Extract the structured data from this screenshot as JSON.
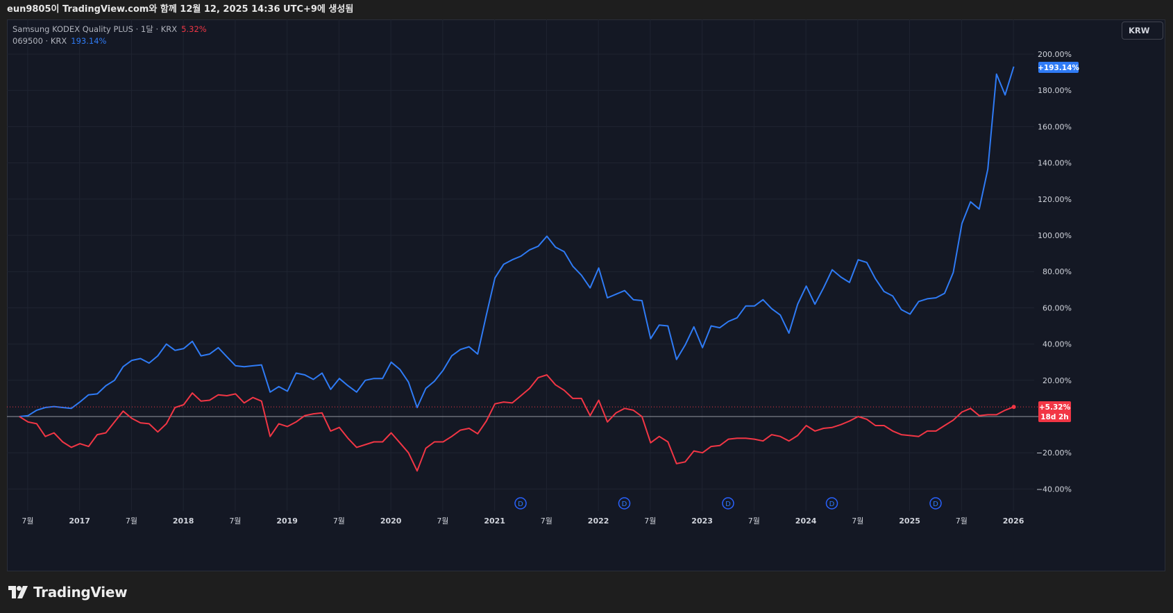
{
  "header": {
    "caption": "eun9805이 TradingView.com와 함께 12월 12, 2025 14:36 UTC+9에 생성됨"
  },
  "legend": {
    "series_a_label": "Samsung KODEX Quality PLUS · 1달 · KRX",
    "series_a_value": "5.32%",
    "series_b_label": "069500 · KRX",
    "series_b_value": "193.14%"
  },
  "currency_button": "KRW",
  "footer": {
    "brand": "TradingView"
  },
  "badges": {
    "series_b_last": "+193.14%",
    "series_a_last": "+5.32%",
    "countdown": "18d 2h"
  },
  "dividend_marker": "D",
  "colors": {
    "series_a": "#f23645",
    "series_b": "#2f7bf5",
    "background": "#141824",
    "grid": "#1f2431"
  },
  "chart_data": {
    "type": "line",
    "ylim": [
      -50,
      210
    ],
    "y_unit": "%",
    "y_ticks": [
      200,
      180,
      160,
      140,
      120,
      100,
      80,
      60,
      40,
      20,
      -20,
      -40
    ],
    "y_tick_labels": [
      "200.00%",
      "180.00%",
      "160.00%",
      "140.00%",
      "120.00%",
      "100.00%",
      "80.00%",
      "60.00%",
      "40.00%",
      "20.00%",
      "−20.00%",
      "−40.00%"
    ],
    "x_start": 2016.3,
    "x_end": 2026.2,
    "x_ticks": [
      {
        "x": 2016.5,
        "label": "7월",
        "bold": false
      },
      {
        "x": 2017.0,
        "label": "2017",
        "bold": true
      },
      {
        "x": 2017.5,
        "label": "7월",
        "bold": false
      },
      {
        "x": 2018.0,
        "label": "2018",
        "bold": true
      },
      {
        "x": 2018.5,
        "label": "7월",
        "bold": false
      },
      {
        "x": 2019.0,
        "label": "2019",
        "bold": true
      },
      {
        "x": 2019.5,
        "label": "7월",
        "bold": false
      },
      {
        "x": 2020.0,
        "label": "2020",
        "bold": true
      },
      {
        "x": 2020.5,
        "label": "7월",
        "bold": false
      },
      {
        "x": 2021.0,
        "label": "2021",
        "bold": true
      },
      {
        "x": 2021.5,
        "label": "7월",
        "bold": false
      },
      {
        "x": 2022.0,
        "label": "2022",
        "bold": true
      },
      {
        "x": 2022.5,
        "label": "7월",
        "bold": false
      },
      {
        "x": 2023.0,
        "label": "2023",
        "bold": true
      },
      {
        "x": 2023.5,
        "label": "7월",
        "bold": false
      },
      {
        "x": 2024.0,
        "label": "2024",
        "bold": true
      },
      {
        "x": 2024.5,
        "label": "7월",
        "bold": false
      },
      {
        "x": 2025.0,
        "label": "2025",
        "bold": true
      },
      {
        "x": 2025.5,
        "label": "7월",
        "bold": false
      },
      {
        "x": 2026.0,
        "label": "2026",
        "bold": true
      }
    ],
    "dividends_x": [
      2021.25,
      2022.25,
      2023.25,
      2024.25,
      2025.25
    ],
    "x_start_date": 2016.42,
    "x_step_months": 1,
    "series": [
      {
        "name": "069500 · KRX",
        "color": "#2f7bf5",
        "values": [
          0.0,
          0.5,
          3.5,
          5.0,
          5.5,
          5.0,
          4.5,
          8.0,
          12.0,
          12.5,
          17.0,
          20.0,
          27.5,
          31.0,
          32.0,
          29.5,
          33.5,
          40.0,
          36.5,
          37.5,
          41.5,
          33.5,
          34.5,
          38.0,
          33.0,
          28.0,
          27.5,
          28.0,
          28.5,
          13.5,
          16.5,
          14.0,
          24.0,
          23.0,
          20.5,
          24.0,
          15.0,
          21.0,
          17.0,
          13.5,
          20.0,
          21.0,
          21.0,
          30.0,
          26.0,
          19.0,
          5.0,
          15.5,
          19.5,
          25.5,
          33.5,
          37.0,
          38.5,
          34.5,
          56.0,
          76.5,
          84.0,
          86.5,
          88.5,
          92.0,
          94.0,
          99.5,
          93.5,
          91.0,
          83.0,
          78.0,
          71.0,
          82.0,
          65.5,
          67.5,
          69.5,
          64.5,
          64.0,
          43.0,
          50.5,
          50.0,
          31.5,
          39.5,
          49.5,
          38.0,
          50.0,
          49.0,
          52.5,
          54.5,
          61.0,
          61.0,
          64.5,
          59.5,
          56.0,
          46.0,
          62.0,
          72.0,
          62.0,
          71.0,
          81.0,
          77.0,
          74.0,
          86.5,
          85.0,
          76.0,
          69.0,
          66.5,
          59.0,
          56.5,
          63.5,
          65.0,
          65.5,
          68.0,
          79.5,
          106.5,
          118.5,
          114.5,
          136.5,
          189.0,
          177.5,
          193.14
        ]
      },
      {
        "name": "Samsung KODEX Quality PLUS · 1달 · KRX",
        "color": "#f23645",
        "values": [
          0.0,
          -3.0,
          -4.0,
          -11.0,
          -9.0,
          -14.0,
          -17.0,
          -15.0,
          -16.5,
          -10.0,
          -9.0,
          -3.0,
          3.0,
          -1.0,
          -3.5,
          -4.0,
          -8.5,
          -4.0,
          5.0,
          6.5,
          13.0,
          8.5,
          9.0,
          12.0,
          11.5,
          12.5,
          7.5,
          10.5,
          8.5,
          -11.0,
          -4.0,
          -5.5,
          -3.0,
          0.5,
          1.5,
          2.0,
          -8.0,
          -6.0,
          -12.0,
          -17.0,
          -15.5,
          -14.0,
          -14.0,
          -9.0,
          -14.5,
          -20.0,
          -30.0,
          -17.5,
          -14.0,
          -14.0,
          -11.0,
          -7.5,
          -6.5,
          -9.5,
          -2.5,
          7.0,
          8.0,
          7.5,
          11.5,
          15.5,
          21.5,
          23.0,
          17.5,
          14.5,
          10.0,
          10.0,
          0.5,
          9.0,
          -3.0,
          2.0,
          4.5,
          3.5,
          0.0,
          -14.5,
          -11.0,
          -14.0,
          -26.0,
          -25.0,
          -19.0,
          -20.0,
          -16.5,
          -16.0,
          -12.5,
          -12.0,
          -12.0,
          -12.5,
          -13.5,
          -10.0,
          -11.0,
          -13.5,
          -10.5,
          -5.0,
          -8.0,
          -6.5,
          -6.0,
          -4.5,
          -2.5,
          0.0,
          -1.5,
          -5.0,
          -5.0,
          -8.0,
          -10.0,
          -10.5,
          -11.0,
          -8.0,
          -8.0,
          -5.0,
          -2.0,
          2.5,
          4.5,
          0.5,
          1.0,
          1.0,
          3.5,
          5.32
        ]
      }
    ]
  }
}
